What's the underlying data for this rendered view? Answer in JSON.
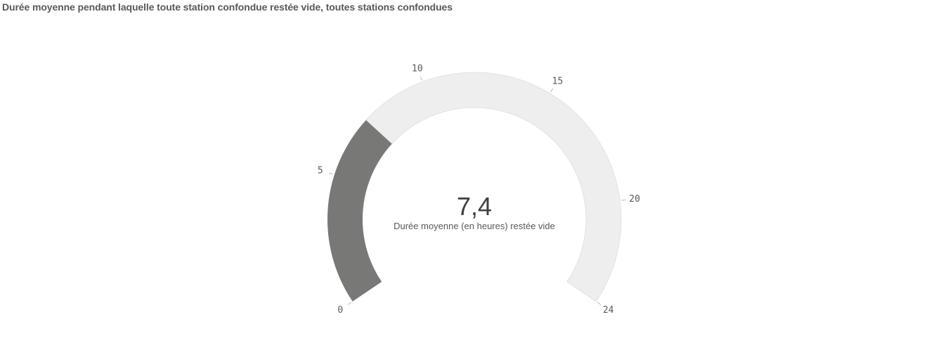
{
  "title": "Durée moyenne pendant laquelle toute station confondue restée vide, toutes stations confondues",
  "chart_data": {
    "type": "gauge",
    "value": 7.4,
    "value_label": "7,4",
    "measure_label": "Durée moyenne (en heures) restée vide",
    "min": 0,
    "max": 24,
    "ticks": [
      {
        "value": 0,
        "label": "0"
      },
      {
        "value": 5,
        "label": "5"
      },
      {
        "value": 10,
        "label": "10"
      },
      {
        "value": 15,
        "label": "15"
      },
      {
        "value": 20,
        "label": "20"
      },
      {
        "value": 24,
        "label": "24"
      }
    ],
    "colors": {
      "fill": "#787876",
      "track": "#eeeeee",
      "track_border": "#e2e2e2",
      "tick": "#bbbbbb"
    }
  }
}
